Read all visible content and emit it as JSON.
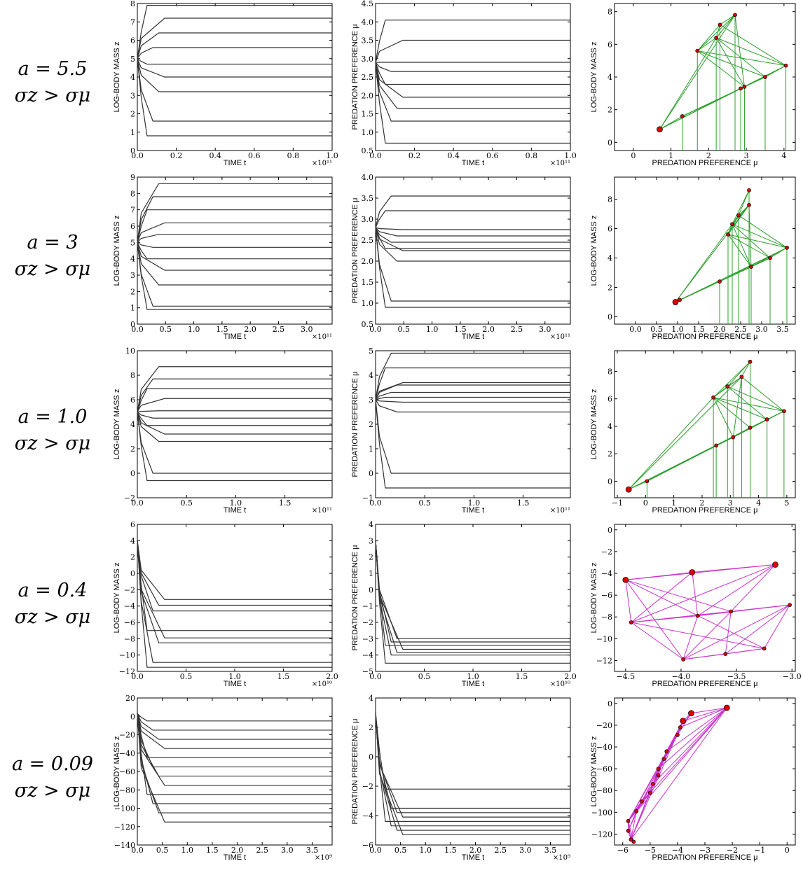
{
  "rows": [
    {
      "label_a": "a = 5.5",
      "label_sigma": "σz > σμ",
      "mass": {
        "xlabel": "TIME t",
        "ylabel": "LOG-BODY MASS z",
        "xlim": [
          0,
          1.0
        ],
        "ylim": [
          0,
          8
        ],
        "xticks": [
          "0.0",
          "0.2",
          "0.4",
          "0.6",
          "0.8",
          "1.0"
        ],
        "xtickv": [
          0,
          0.2,
          0.4,
          0.6,
          0.8,
          1.0
        ],
        "yticks": [
          "0",
          "1",
          "2",
          "3",
          "4",
          "5",
          "6",
          "7",
          "8"
        ],
        "ytickv": [
          0,
          1,
          2,
          3,
          4,
          5,
          6,
          7,
          8
        ],
        "xexp": "×10¹¹",
        "lines": [
          0.8,
          1.6,
          3.2,
          4.0,
          4.7,
          5.6,
          6.4,
          7.2,
          7.9
        ],
        "start": [
          5.0,
          5.0,
          5.0,
          5.0,
          5.0,
          5.0,
          5.0,
          5.0,
          5.0
        ]
      },
      "pref": {
        "xlabel": "TIME t",
        "ylabel": "PREDATION PREFERENCE μ",
        "xlim": [
          0,
          1.0
        ],
        "ylim": [
          0.5,
          4.5
        ],
        "xticks": [
          "0.0",
          "0.2",
          "0.4",
          "0.6",
          "0.8",
          "1.0"
        ],
        "xtickv": [
          0,
          0.2,
          0.4,
          0.6,
          0.8,
          1.0
        ],
        "yticks": [
          "0.5",
          "1.0",
          "1.5",
          "2.0",
          "2.5",
          "3.0",
          "3.5",
          "4.0",
          "4.5"
        ],
        "ytickv": [
          0.5,
          1.0,
          1.5,
          2.0,
          2.5,
          3.0,
          3.5,
          4.0,
          4.5
        ],
        "xexp": "×10¹¹",
        "lines": [
          0.7,
          1.3,
          1.65,
          1.95,
          2.3,
          2.65,
          2.9,
          3.5,
          4.05
        ],
        "start": [
          2.9,
          2.9,
          2.9,
          2.9,
          2.9,
          2.9,
          2.9,
          2.9,
          2.9
        ]
      },
      "web": {
        "xlabel": "PREDATION PREFERENCE μ",
        "ylabel": "LOG-BODY MASS z",
        "color": "#2ca02c",
        "xlim": [
          -0.5,
          4.3
        ],
        "ylim": [
          -0.5,
          8.5
        ],
        "xticks": [
          "0",
          "1",
          "2",
          "3",
          "4"
        ],
        "xtickv": [
          0,
          1,
          2,
          3,
          4
        ],
        "yticks": [
          "0",
          "2",
          "4",
          "6",
          "8"
        ],
        "ytickv": [
          0,
          2,
          4,
          6,
          8
        ],
        "nodes": [
          [
            0.7,
            0.8
          ],
          [
            1.3,
            1.6
          ],
          [
            2.85,
            3.3
          ],
          [
            2.95,
            3.4
          ],
          [
            3.5,
            4.0
          ],
          [
            4.05,
            4.7
          ],
          [
            1.7,
            5.6
          ],
          [
            2.2,
            6.4
          ],
          [
            2.3,
            7.2
          ],
          [
            2.7,
            7.8
          ]
        ]
      }
    },
    {
      "label_a": "a = 3",
      "label_sigma": "σz > σμ",
      "mass": {
        "xlabel": "TIME t",
        "ylabel": "LOG-BODY MASS z",
        "xlim": [
          0,
          3.45
        ],
        "ylim": [
          0,
          9
        ],
        "xticks": [
          "0.0",
          "0.5",
          "1.0",
          "1.5",
          "2.0",
          "2.5",
          "3.0"
        ],
        "xtickv": [
          0,
          0.5,
          1.0,
          1.5,
          2.0,
          2.5,
          3.0
        ],
        "yticks": [
          "0",
          "1",
          "2",
          "3",
          "4",
          "5",
          "6",
          "7",
          "8",
          "9"
        ],
        "ytickv": [
          0,
          1,
          2,
          3,
          4,
          5,
          6,
          7,
          8,
          9
        ],
        "xexp": "×10¹¹",
        "lines": [
          0.9,
          1.1,
          2.4,
          3.3,
          4.0,
          4.7,
          5.5,
          6.2,
          7.0,
          7.8,
          8.6
        ],
        "start": [
          5,
          5,
          5,
          5,
          5,
          5,
          5,
          5,
          5,
          5,
          5
        ]
      },
      "pref": {
        "xlabel": "TIME t",
        "ylabel": "PREDATION PREFERENCE μ",
        "xlim": [
          0,
          3.45
        ],
        "ylim": [
          0.5,
          4.0
        ],
        "xticks": [
          "0.0",
          "0.5",
          "1.0",
          "1.5",
          "2.0",
          "2.5",
          "3.0"
        ],
        "xtickv": [
          0,
          0.5,
          1.0,
          1.5,
          2.0,
          2.5,
          3.0
        ],
        "yticks": [
          "0.5",
          "1.0",
          "1.5",
          "2.0",
          "2.5",
          "3.0",
          "3.5",
          "4.0"
        ],
        "ytickv": [
          0.5,
          1.0,
          1.5,
          2.0,
          2.5,
          3.0,
          3.5,
          4.0
        ],
        "xexp": "×10¹¹",
        "lines": [
          0.9,
          1.05,
          2.0,
          2.25,
          2.3,
          2.45,
          2.6,
          2.75,
          3.2,
          3.55
        ],
        "start": [
          2.8,
          2.8,
          2.8,
          2.8,
          2.8,
          2.8,
          2.8,
          2.8,
          2.8,
          2.8
        ]
      },
      "web": {
        "xlabel": "PREDATION PREFERENCE μ",
        "ylabel": "LOG-BODY MASS z",
        "color": "#2ca02c",
        "xlim": [
          -0.5,
          3.8
        ],
        "ylim": [
          -0.5,
          9.5
        ],
        "xticks": [
          "0.0",
          "0.5",
          "1.0",
          "1.5",
          "2.0",
          "2.5",
          "3.0",
          "3.5"
        ],
        "xtickv": [
          0,
          0.5,
          1.0,
          1.5,
          2.0,
          2.5,
          3.0,
          3.5
        ],
        "yticks": [
          "0",
          "2",
          "4",
          "6",
          "8"
        ],
        "ytickv": [
          0,
          2,
          4,
          6,
          8
        ],
        "nodes": [
          [
            0.95,
            1.0
          ],
          [
            1.05,
            1.15
          ],
          [
            2.0,
            2.4
          ],
          [
            2.75,
            3.4
          ],
          [
            3.2,
            4.0
          ],
          [
            3.6,
            4.7
          ],
          [
            2.2,
            5.6
          ],
          [
            2.3,
            6.3
          ],
          [
            2.45,
            6.9
          ],
          [
            2.7,
            7.6
          ],
          [
            2.7,
            8.6
          ]
        ]
      }
    },
    {
      "label_a": "a = 1.0",
      "label_sigma": "σz > σμ",
      "mass": {
        "xlabel": "TIME t",
        "ylabel": "LOG-BODY MASS z",
        "xlim": [
          0,
          1.98
        ],
        "ylim": [
          -2,
          10
        ],
        "xticks": [
          "0.0",
          "0.5",
          "1.0",
          "1.5"
        ],
        "xtickv": [
          0,
          0.5,
          1.0,
          1.5
        ],
        "yticks": [
          "−2",
          "0",
          "2",
          "4",
          "6",
          "8",
          "10"
        ],
        "ytickv": [
          -2,
          0,
          2,
          4,
          6,
          8,
          10
        ],
        "xexp": "×10¹¹",
        "lines": [
          -0.6,
          0.0,
          2.6,
          3.2,
          3.9,
          4.5,
          5.1,
          6.1,
          6.9,
          7.7,
          8.7
        ],
        "start": [
          5,
          5,
          5,
          5,
          5,
          5,
          5,
          5,
          5,
          5,
          5
        ]
      },
      "pref": {
        "xlabel": "TIME t",
        "ylabel": "PREDATION PREFERENCE μ",
        "xlim": [
          0,
          1.98
        ],
        "ylim": [
          -1,
          5
        ],
        "xticks": [
          "0.0",
          "0.5",
          "1.0",
          "1.5"
        ],
        "xtickv": [
          0,
          0.5,
          1.0,
          1.5
        ],
        "yticks": [
          "−1",
          "0",
          "1",
          "2",
          "3",
          "4",
          "5"
        ],
        "ytickv": [
          -1,
          0,
          1,
          2,
          3,
          4,
          5
        ],
        "xexp": "×10¹¹",
        "lines": [
          -0.6,
          0.0,
          2.5,
          2.9,
          3.1,
          3.3,
          3.6,
          3.7,
          4.3,
          4.9
        ],
        "start": [
          3,
          3,
          3,
          3,
          3,
          3,
          3,
          3,
          3,
          3
        ]
      },
      "web": {
        "xlabel": "PREDATION PREFERENCE μ",
        "ylabel": "LOG-BODY MASS z",
        "color": "#2ca02c",
        "xlim": [
          -1.1,
          5.3
        ],
        "ylim": [
          -1.2,
          9.5
        ],
        "xticks": [
          "−1",
          "0",
          "1",
          "2",
          "3",
          "4",
          "5"
        ],
        "xtickv": [
          -1,
          0,
          1,
          2,
          3,
          4,
          5
        ],
        "yticks": [
          "0",
          "2",
          "4",
          "6",
          "8"
        ],
        "ytickv": [
          0,
          2,
          4,
          6,
          8
        ],
        "nodes": [
          [
            -0.6,
            -0.6
          ],
          [
            0.05,
            0.0
          ],
          [
            2.5,
            2.6
          ],
          [
            3.1,
            3.2
          ],
          [
            3.7,
            3.9
          ],
          [
            4.3,
            4.5
          ],
          [
            4.9,
            5.1
          ],
          [
            2.4,
            6.1
          ],
          [
            2.9,
            6.9
          ],
          [
            3.4,
            7.6
          ],
          [
            3.7,
            8.7
          ]
        ]
      }
    },
    {
      "label_a": "a = 0.4",
      "label_sigma": "σz > σμ",
      "mass": {
        "xlabel": "TIME t",
        "ylabel": "LOG-BODY MASS z",
        "xlim": [
          0,
          2.0
        ],
        "ylim": [
          -12,
          6
        ],
        "xticks": [
          "0.0",
          "0.5",
          "1.0",
          "1.5",
          "2.0"
        ],
        "xtickv": [
          0,
          0.5,
          1.0,
          1.5,
          2.0
        ],
        "yticks": [
          "−12",
          "−10",
          "−8",
          "−6",
          "−4",
          "−2",
          "0",
          "2",
          "4",
          "6"
        ],
        "ytickv": [
          -12,
          -10,
          -8,
          -6,
          -4,
          -2,
          0,
          2,
          4,
          6
        ],
        "xexp": "×10¹⁰",
        "lines": [
          -11.5,
          -10.9,
          -8.5,
          -7.9,
          -7.0,
          -4.6,
          -3.9,
          -3.2
        ],
        "start": [
          4,
          4,
          4,
          4,
          4,
          4,
          4,
          4
        ]
      },
      "pref": {
        "xlabel": "TIME t",
        "ylabel": "PREDATION PREFERENCE μ",
        "xlim": [
          0,
          2.0
        ],
        "ylim": [
          -5,
          4
        ],
        "xticks": [
          "0.0",
          "0.5",
          "1.0",
          "1.5",
          "2.0"
        ],
        "xtickv": [
          0,
          0.5,
          1.0,
          1.5,
          2.0
        ],
        "yticks": [
          "−5",
          "−4",
          "−3",
          "−2",
          "−1",
          "0",
          "1",
          "2",
          "3",
          "4"
        ],
        "ytickv": [
          -5,
          -4,
          -3,
          -2,
          -1,
          0,
          1,
          2,
          3,
          4
        ],
        "xexp": "×10¹⁰",
        "lines": [
          -4.5,
          -4.0,
          -3.85,
          -3.65,
          -3.4,
          -3.2,
          -3.0
        ],
        "start": [
          3,
          3,
          3,
          3,
          3,
          3,
          3
        ]
      },
      "web": {
        "xlabel": "PREDATION PREFERENCE μ",
        "ylabel": "LOG-BODY MASS z",
        "color": "#cc33cc",
        "xlim": [
          -4.6,
          -2.97
        ],
        "ylim": [
          -13,
          0.5
        ],
        "xticks": [
          "−4.5",
          "−4.0",
          "−3.5",
          "−3.0"
        ],
        "xtickv": [
          -4.5,
          -4.0,
          -3.5,
          -3.0
        ],
        "yticks": [
          "−12",
          "−10",
          "−8",
          "−6",
          "−4",
          "−2",
          "0"
        ],
        "ytickv": [
          -12,
          -10,
          -8,
          -6,
          -4,
          -2,
          0
        ],
        "nodes": [
          [
            -4.5,
            -4.6
          ],
          [
            -3.9,
            -3.9
          ],
          [
            -3.15,
            -3.2
          ],
          [
            -4.45,
            -8.5
          ],
          [
            -3.85,
            -7.9
          ],
          [
            -3.55,
            -7.5
          ],
          [
            -3.02,
            -6.9
          ],
          [
            -3.98,
            -11.9
          ],
          [
            -3.6,
            -11.4
          ],
          [
            -3.25,
            -10.9
          ]
        ]
      }
    },
    {
      "label_a": "a = 0.09",
      "label_sigma": "σz > σμ",
      "mass": {
        "xlabel": "TIME t",
        "ylabel": "LOG-BODY MASS z",
        "xlim": [
          0,
          3.9
        ],
        "ylim": [
          -140,
          20
        ],
        "xticks": [
          "0.0",
          "0.5",
          "1.0",
          "1.5",
          "2.0",
          "2.5",
          "3.0",
          "3.5"
        ],
        "xtickv": [
          0,
          0.5,
          1.0,
          1.5,
          2.0,
          2.5,
          3.0,
          3.5
        ],
        "yticks": [
          "−140",
          "−120",
          "−100",
          "−80",
          "−60",
          "−40",
          "−20",
          "0",
          "20"
        ],
        "ytickv": [
          -140,
          -120,
          -100,
          -80,
          -60,
          -40,
          -20,
          0,
          20
        ],
        "xexp": "×10⁹",
        "lines": [
          -5,
          -15,
          -25,
          -35,
          -45,
          -55,
          -65,
          -75,
          -85,
          -95,
          -105,
          -115
        ],
        "start": [
          3,
          3,
          3,
          3,
          3,
          3,
          3,
          3,
          3,
          3,
          3,
          3
        ]
      },
      "pref": {
        "xlabel": "TIME t",
        "ylabel": "PREDATION PREFERENCE μ",
        "xlim": [
          0,
          3.9
        ],
        "ylim": [
          -6,
          4
        ],
        "xticks": [
          "0.0",
          "0.5",
          "1.0",
          "1.5",
          "2.0",
          "2.5",
          "3.0",
          "3.5"
        ],
        "xtickv": [
          0,
          0.5,
          1.0,
          1.5,
          2.0,
          2.5,
          3.0,
          3.5
        ],
        "yticks": [
          "−6",
          "−4",
          "−2",
          "0",
          "2",
          "4"
        ],
        "ytickv": [
          -6,
          -4,
          -2,
          0,
          2,
          4
        ],
        "xexp": "×10⁹",
        "lines": [
          -2.2,
          -3.5,
          -3.8,
          -4.1,
          -4.4,
          -4.7,
          -5.0,
          -5.3
        ],
        "start": [
          3,
          3,
          3,
          3,
          3,
          3,
          3,
          3
        ]
      },
      "web": {
        "xlabel": "PREDATION PREFERENCE μ",
        "ylabel": "LOG-BODY MASS z",
        "color": "#cc33cc",
        "xlim": [
          -6.3,
          0.3
        ],
        "ylim": [
          -130,
          5
        ],
        "xticks": [
          "−6",
          "−5",
          "−4",
          "−3",
          "−2",
          "−1",
          "0"
        ],
        "xtickv": [
          -6,
          -5,
          -4,
          -3,
          -2,
          -1,
          0
        ],
        "yticks": [
          "−120",
          "−100",
          "−80",
          "−60",
          "−40",
          "−20",
          "0"
        ],
        "ytickv": [
          -120,
          -100,
          -80,
          -60,
          -40,
          -20,
          0
        ],
        "nodes": [
          [
            -2.2,
            -4
          ],
          [
            -3.5,
            -9
          ],
          [
            -3.8,
            -16
          ],
          [
            -3.9,
            -22
          ],
          [
            -4.0,
            -29
          ],
          [
            -4.4,
            -44
          ],
          [
            -4.5,
            -51
          ],
          [
            -4.7,
            -60
          ],
          [
            -4.7,
            -66
          ],
          [
            -4.9,
            -74
          ],
          [
            -5.0,
            -82
          ],
          [
            -5.3,
            -90
          ],
          [
            -5.5,
            -99
          ],
          [
            -5.8,
            -108
          ],
          [
            -5.8,
            -117
          ],
          [
            -5.7,
            -125
          ],
          [
            -5.6,
            -127
          ]
        ]
      }
    }
  ]
}
